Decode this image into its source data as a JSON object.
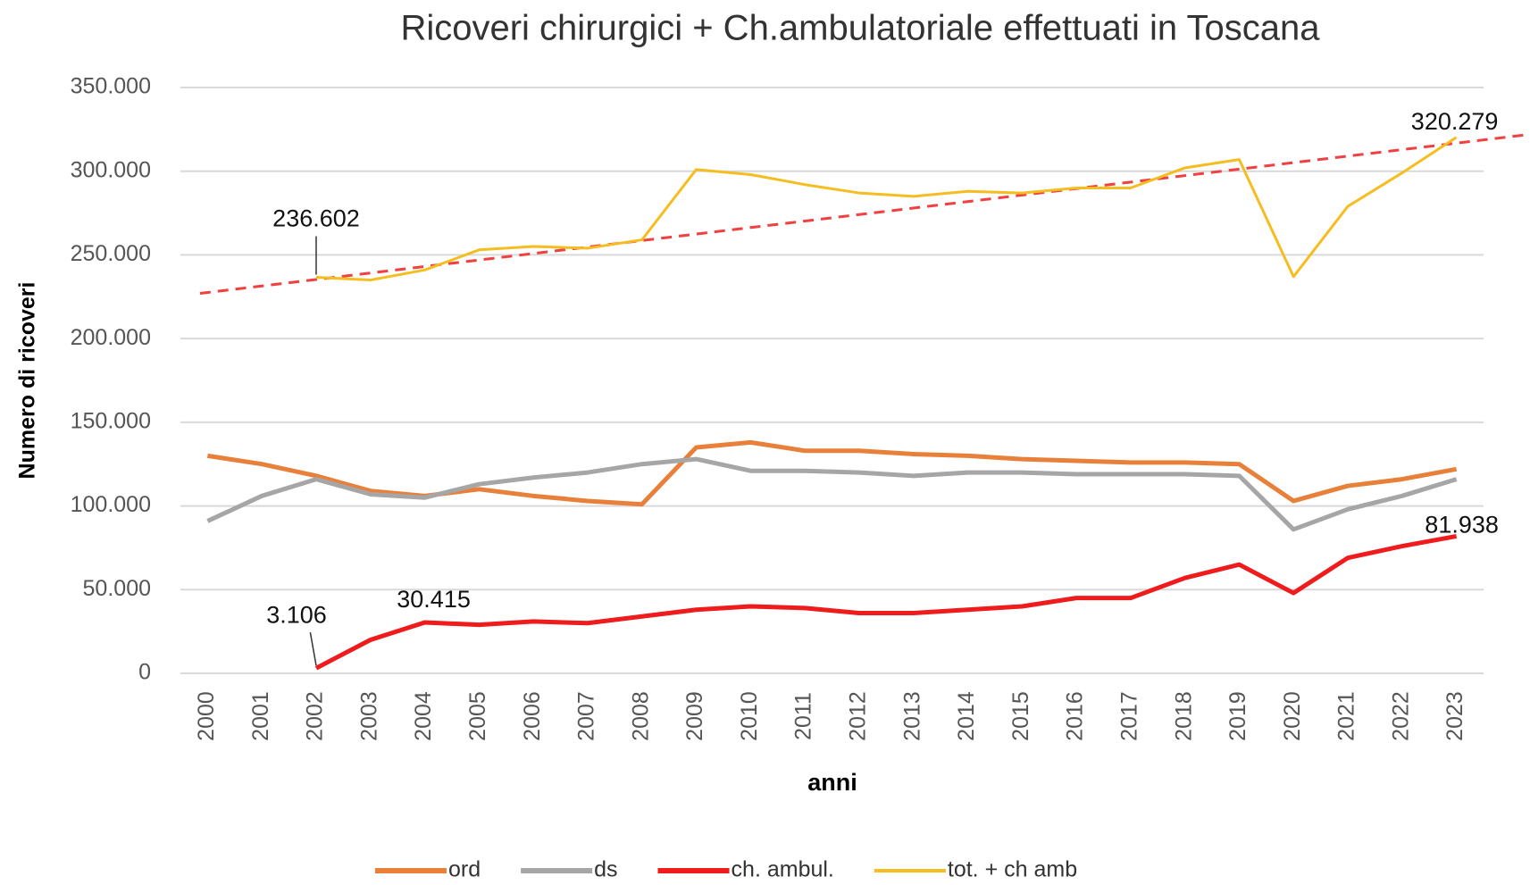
{
  "chart_data": {
    "type": "line",
    "title": "Ricoveri chirurgici + Ch.ambulatoriale effettuati in Toscana",
    "x_label": "anni",
    "y_label": "Numero di ricoveri",
    "categories": [
      "2000",
      "2001",
      "2002",
      "2003",
      "2004",
      "2005",
      "2006",
      "2007",
      "2008",
      "2009",
      "2010",
      "2011",
      "2012",
      "2013",
      "2014",
      "2015",
      "2016",
      "2017",
      "2018",
      "2019",
      "2020",
      "2021",
      "2022",
      "2023"
    ],
    "series": [
      {
        "name": "ord",
        "color": "#e8803a",
        "width": 5,
        "values": [
          130000,
          125000,
          118000,
          109000,
          106000,
          110000,
          106000,
          103000,
          101000,
          135000,
          138000,
          133000,
          133000,
          131000,
          130000,
          128000,
          127000,
          126000,
          126000,
          125000,
          103000,
          112000,
          116000,
          122000
        ]
      },
      {
        "name": "ds",
        "color": "#a6a6a6",
        "width": 5,
        "values": [
          91000,
          106000,
          116000,
          107000,
          105000,
          113000,
          117000,
          120000,
          125000,
          128000,
          121000,
          121000,
          120000,
          118000,
          120000,
          120000,
          119000,
          119000,
          119000,
          118000,
          86000,
          98000,
          106000,
          116000
        ]
      },
      {
        "name": "ch. ambul.",
        "color": "#ee1c1c",
        "width": 5,
        "values": [
          null,
          null,
          3106,
          20000,
          30415,
          29000,
          31000,
          30000,
          34000,
          38000,
          40000,
          39000,
          36000,
          36000,
          38000,
          40000,
          45000,
          45000,
          57000,
          65000,
          48000,
          69000,
          76000,
          81938
        ],
        "value_labels": [
          null,
          null,
          "3.106",
          null,
          "30.415",
          null,
          null,
          null,
          null,
          null,
          null,
          null,
          null,
          null,
          null,
          null,
          null,
          null,
          null,
          null,
          null,
          null,
          null,
          "81.938"
        ]
      },
      {
        "name": "tot. + ch amb",
        "color": "#f5bd1f",
        "width": 3,
        "values": [
          null,
          null,
          236602,
          235000,
          241000,
          253000,
          255000,
          254000,
          259000,
          301000,
          298000,
          292000,
          287000,
          285000,
          288000,
          287000,
          290000,
          290000,
          302000,
          307000,
          237000,
          279000,
          299000,
          320279
        ],
        "value_labels": [
          null,
          null,
          "236.602",
          null,
          null,
          null,
          null,
          null,
          null,
          null,
          null,
          null,
          null,
          null,
          null,
          null,
          null,
          null,
          null,
          null,
          null,
          null,
          null,
          "320.279"
        ]
      }
    ],
    "trendline": {
      "color": "#f04040",
      "start": 227000,
      "end": 322000
    },
    "ylim": [
      0,
      350000
    ],
    "yticks": [
      0,
      {
        "value": 50000,
        "label": "50.000"
      },
      {
        "value": 100000,
        "label": "100.000"
      },
      {
        "value": 150000,
        "label": "150.000"
      },
      {
        "value": 200000,
        "label": "200.000"
      },
      {
        "value": 250000,
        "label": "250.000"
      },
      {
        "value": 300000,
        "label": "300.000"
      },
      {
        "value": 350000,
        "label": "350.000"
      }
    ],
    "grid": true,
    "legend": "bottom"
  }
}
